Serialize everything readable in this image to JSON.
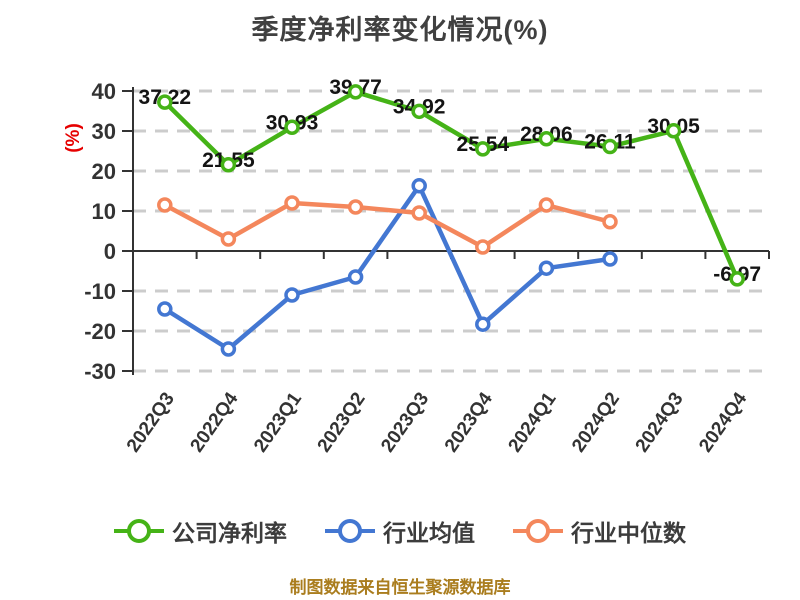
{
  "title": {
    "text": "季度净利率变化情况(%)"
  },
  "footer": {
    "text": "制图数据来自恒生聚源数据库"
  },
  "colors": {
    "background": "#ffffff",
    "title": "#404040",
    "axis": "#333333",
    "grid": "#cccccc",
    "tick_label": "#333333",
    "data_label": "#141414",
    "y_axis_name": "#e60000",
    "footer": "#aa7d1e",
    "legend_text": "#3c3c3c",
    "series_green": "#45b317",
    "series_blue": "#4377d2",
    "series_orange": "#f4875c"
  },
  "chart_data": {
    "type": "line",
    "title": "季度净利率变化情况(%)",
    "ylabel": "(%)",
    "xlabel": "",
    "ylim": [
      -30,
      40
    ],
    "ytick_interval": 10,
    "yticks": [
      40,
      30,
      20,
      10,
      0,
      -10,
      -20,
      -30
    ],
    "grid": "horizontal-dashed",
    "legend_position": "bottom",
    "categories": [
      "2022Q3",
      "2022Q4",
      "2023Q1",
      "2023Q2",
      "2023Q3",
      "2023Q4",
      "2024Q1",
      "2024Q2",
      "2024Q3",
      "2024Q4"
    ],
    "series": [
      {
        "name": "公司净利率",
        "color": "#45b317",
        "labeled": true,
        "values": [
          37.22,
          21.55,
          30.93,
          39.77,
          34.92,
          25.54,
          28.06,
          26.11,
          30.05,
          -6.97
        ],
        "labels": [
          "37.22",
          "21.55",
          "30.93",
          "39.77",
          "34.92",
          "25.54",
          "28.06",
          "26.11",
          "30.05",
          "-6.97"
        ]
      },
      {
        "name": "行业均值",
        "color": "#4377d2",
        "labeled": false,
        "values": [
          -14.5,
          -24.5,
          -11.0,
          -6.5,
          16.3,
          -18.3,
          -4.3,
          -2.0
        ]
      },
      {
        "name": "行业中位数",
        "color": "#f4875c",
        "labeled": false,
        "values": [
          11.5,
          3.0,
          12.0,
          11.0,
          9.5,
          1.0,
          11.5,
          7.3
        ]
      }
    ]
  }
}
